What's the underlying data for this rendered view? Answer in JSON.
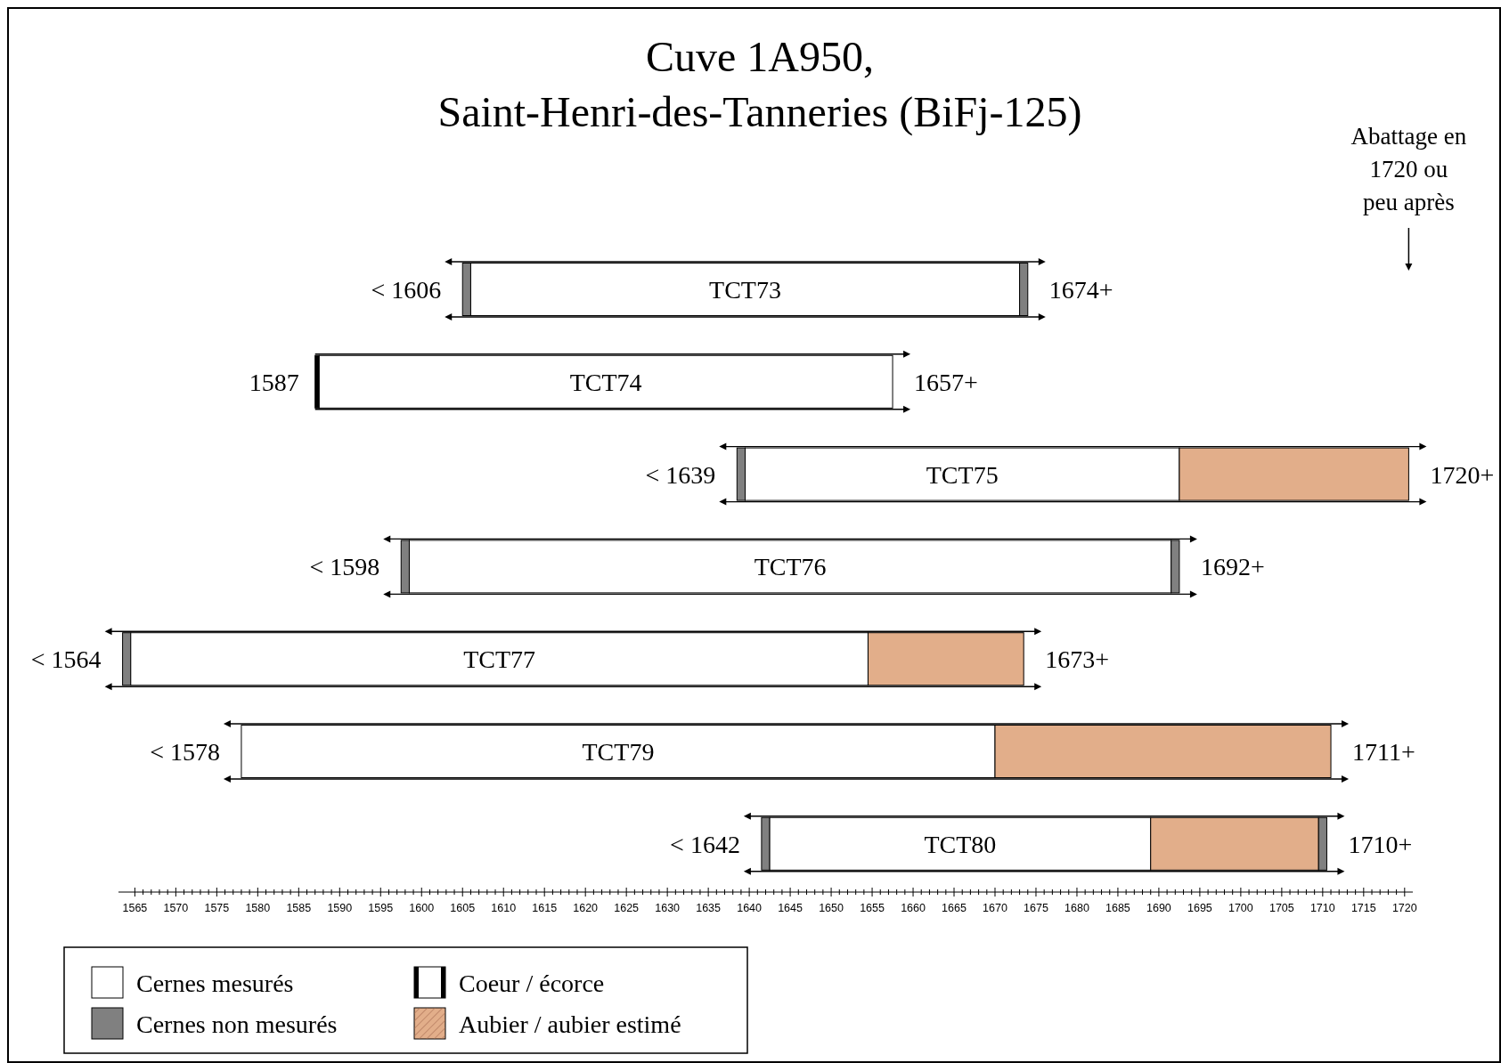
{
  "chart_data": {
    "type": "bar",
    "orientation": "horizontal",
    "title": "Cuve 1A950,\nSaint-Henri-des-Tanneries (BiFj-125)",
    "categories": [
      "TCT73",
      "TCT74",
      "TCT75",
      "TCT76",
      "TCT77",
      "TCT79",
      "TCT80"
    ],
    "series": [
      {
        "name": "Cernes non mesurés",
        "color": "#808080",
        "base": [
          1605,
          null,
          1638.5,
          1597.5,
          1563.5,
          null,
          1641.5
        ],
        "values": [
          1,
          null,
          1,
          1,
          1,
          null,
          1
        ]
      },
      {
        "name": "Coeur / écorce",
        "color": "#000000",
        "base": [
          null,
          1587,
          null,
          null,
          null,
          null,
          null
        ],
        "values": [
          null,
          0.5,
          null,
          null,
          null,
          null,
          null
        ]
      },
      {
        "name": "Cernes mesurés",
        "color": "#ffffff",
        "base": [
          1606,
          1587.5,
          1639.5,
          1598.5,
          1564.5,
          1578,
          1642.5
        ],
        "values": [
          67,
          70,
          53,
          93,
          90,
          92,
          46.5
        ]
      },
      {
        "name": "Aubier / aubier estimé",
        "color": "#e2ae8a",
        "base": [
          null,
          null,
          1692.5,
          null,
          1654.5,
          1670,
          1689
        ],
        "values": [
          null,
          null,
          28,
          null,
          19,
          41,
          20.5
        ]
      },
      {
        "color": "#808080",
        "base": [
          1673,
          null,
          null,
          1691.5,
          null,
          null,
          1709.5
        ],
        "values": [
          1,
          null,
          null,
          1,
          null,
          null,
          1
        ]
      }
    ],
    "annotations": [
      "< 1606",
      "1674+",
      "1587",
      "1657+",
      "< 1639",
      "1720+",
      "< 1598",
      "1692+",
      "< 1564",
      "1673+",
      "< 1578",
      "1711+",
      "< 1642",
      "1710+",
      "Abattage en\n1720 ou\npeu après"
    ],
    "xlim": [
      1563,
      1721
    ],
    "xticks": [
      1565,
      {
        "value": 1566,
        "label": null
      },
      {
        "value": 1567,
        "label": null
      },
      {
        "value": 1568,
        "label": null
      },
      {
        "value": 1569,
        "label": null
      },
      1570,
      {
        "value": 1571,
        "label": null
      },
      {
        "value": 1572,
        "label": null
      },
      {
        "value": 1573,
        "label": null
      },
      {
        "value": 1574,
        "label": null
      },
      1575,
      {
        "value": 1576,
        "label": null
      },
      {
        "value": 1577,
        "label": null
      },
      {
        "value": 1578,
        "label": null
      },
      {
        "value": 1579,
        "label": null
      },
      1580,
      {
        "value": 1581,
        "label": null
      },
      {
        "value": 1582,
        "label": null
      },
      {
        "value": 1583,
        "label": null
      },
      {
        "value": 1584,
        "label": null
      },
      1585,
      {
        "value": 1586,
        "label": null
      },
      {
        "value": 1587,
        "label": null
      },
      {
        "value": 1588,
        "label": null
      },
      {
        "value": 1589,
        "label": null
      },
      1590,
      {
        "value": 1591,
        "label": null
      },
      {
        "value": 1592,
        "label": null
      },
      {
        "value": 1593,
        "label": null
      },
      {
        "value": 1594,
        "label": null
      },
      1595,
      {
        "value": 1596,
        "label": null
      },
      {
        "value": 1597,
        "label": null
      },
      {
        "value": 1598,
        "label": null
      },
      {
        "value": 1599,
        "label": null
      },
      1600,
      {
        "value": 1601,
        "label": null
      },
      {
        "value": 1602,
        "label": null
      },
      {
        "value": 1603,
        "label": null
      },
      {
        "value": 1604,
        "label": null
      },
      1605,
      {
        "value": 1606,
        "label": null
      },
      {
        "value": 1607,
        "label": null
      },
      {
        "value": 1608,
        "label": null
      },
      {
        "value": 1609,
        "label": null
      },
      1610,
      {
        "value": 1611,
        "label": null
      },
      {
        "value": 1612,
        "label": null
      },
      {
        "value": 1613,
        "label": null
      },
      {
        "value": 1614,
        "label": null
      },
      1615,
      {
        "value": 1616,
        "label": null
      },
      {
        "value": 1617,
        "label": null
      },
      {
        "value": 1618,
        "label": null
      },
      {
        "value": 1619,
        "label": null
      },
      1620,
      {
        "value": 1621,
        "label": null
      },
      {
        "value": 1622,
        "label": null
      },
      {
        "value": 1623,
        "label": null
      },
      {
        "value": 1624,
        "label": null
      },
      1625,
      {
        "value": 1626,
        "label": null
      },
      {
        "value": 1627,
        "label": null
      },
      {
        "value": 1628,
        "label": null
      },
      {
        "value": 1629,
        "label": null
      },
      1630,
      {
        "value": 1631,
        "label": null
      },
      {
        "value": 1632,
        "label": null
      },
      {
        "value": 1633,
        "label": null
      },
      {
        "value": 1634,
        "label": null
      },
      1635,
      {
        "value": 1636,
        "label": null
      },
      {
        "value": 1637,
        "label": null
      },
      {
        "value": 1638,
        "label": null
      },
      {
        "value": 1639,
        "label": null
      },
      1640,
      {
        "value": 1641,
        "label": null
      },
      {
        "value": 1642,
        "label": null
      },
      {
        "value": 1643,
        "label": null
      },
      {
        "value": 1644,
        "label": null
      },
      1645,
      {
        "value": 1646,
        "label": null
      },
      {
        "value": 1647,
        "label": null
      },
      {
        "value": 1648,
        "label": null
      },
      {
        "value": 1649,
        "label": null
      },
      1650,
      {
        "value": 1651,
        "label": null
      },
      {
        "value": 1652,
        "label": null
      },
      {
        "value": 1653,
        "label": null
      },
      {
        "value": 1654,
        "label": null
      },
      1655,
      {
        "value": 1656,
        "label": null
      },
      {
        "value": 1657,
        "label": null
      },
      {
        "value": 1658,
        "label": null
      },
      {
        "value": 1659,
        "label": null
      },
      1660,
      {
        "value": 1661,
        "label": null
      },
      {
        "value": 1662,
        "label": null
      },
      {
        "value": 1663,
        "label": null
      },
      {
        "value": 1664,
        "label": null
      },
      1665,
      {
        "value": 1666,
        "label": null
      },
      {
        "value": 1667,
        "label": null
      },
      {
        "value": 1668,
        "label": null
      },
      {
        "value": 1669,
        "label": null
      },
      1670,
      {
        "value": 1671,
        "label": null
      },
      {
        "value": 1672,
        "label": null
      },
      {
        "value": 1673,
        "label": null
      },
      {
        "value": 1674,
        "label": null
      },
      1675,
      {
        "value": 1676,
        "label": null
      },
      {
        "value": 1677,
        "label": null
      },
      {
        "value": 1678,
        "label": null
      },
      {
        "value": 1679,
        "label": null
      },
      1680,
      {
        "value": 1681,
        "label": null
      },
      {
        "value": 1682,
        "label": null
      },
      {
        "value": 1683,
        "label": null
      },
      {
        "value": 1684,
        "label": null
      },
      1685,
      {
        "value": 1686,
        "label": null
      },
      {
        "value": 1687,
        "label": null
      },
      {
        "value": 1688,
        "label": null
      },
      {
        "value": 1689,
        "label": null
      },
      1690,
      {
        "value": 1691,
        "label": null
      },
      {
        "value": 1692,
        "label": null
      },
      {
        "value": 1693,
        "label": null
      },
      {
        "value": 1694,
        "label": null
      },
      1695,
      {
        "value": 1696,
        "label": null
      },
      {
        "value": 1697,
        "label": null
      },
      {
        "value": 1698,
        "label": null
      },
      {
        "value": 1699,
        "label": null
      },
      1700,
      {
        "value": 1701,
        "label": null
      },
      {
        "value": 1702,
        "label": null
      },
      {
        "value": 1703,
        "label": null
      },
      {
        "value": 1704,
        "label": null
      },
      1705,
      {
        "value": 1706,
        "label": null
      },
      {
        "value": 1707,
        "label": null
      },
      {
        "value": 1708,
        "label": null
      },
      {
        "value": 1709,
        "label": null
      },
      1710,
      {
        "value": 1711,
        "label": null
      },
      {
        "value": 1712,
        "label": null
      },
      {
        "value": 1713,
        "label": null
      },
      {
        "value": 1714,
        "label": null
      },
      1715,
      {
        "value": 1716,
        "label": null
      },
      {
        "value": 1717,
        "label": null
      },
      {
        "value": 1718,
        "label": null
      },
      {
        "value": 1719,
        "label": null
      },
      1720
    ],
    "legend": "bottom left",
    "grid": false
  }
}
